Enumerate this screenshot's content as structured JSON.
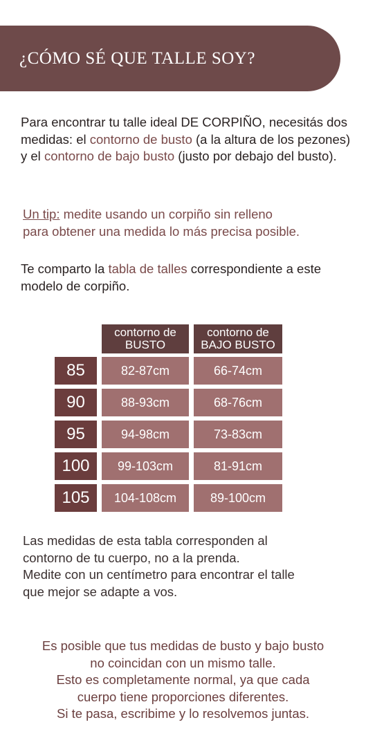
{
  "header": {
    "title": "¿CÓMO SÉ QUE TALLE SOY?"
  },
  "intro": [
    "Para encontrar tu talle ideal DE CORPIÑO, necesitás dos medidas: el ",
    "contorno de busto",
    " (a la altura de los pezones) y el ",
    "contorno de bajo busto",
    " (justo por debajo del busto)."
  ],
  "tip": {
    "label": "Un tip:",
    "lines": [
      " medite usando un corpiño sin relleno",
      "para obtener una medida lo más precisa posible."
    ]
  },
  "share": [
    "Te comparto la ",
    "tabla de talles",
    " correspondiente a este modelo de corpiño."
  ],
  "table": {
    "headers": [
      [
        "contorno de",
        "BUSTO"
      ],
      [
        "contorno de",
        "BAJO BUSTO"
      ]
    ],
    "rows": [
      [
        "85",
        "82-87cm",
        "66-74cm"
      ],
      [
        "90",
        "88-93cm",
        "68-76cm"
      ],
      [
        "95",
        "94-98cm",
        "73-83cm"
      ],
      [
        "100",
        "99-103cm",
        "81-91cm"
      ],
      [
        "105",
        "104-108cm",
        "89-100cm"
      ]
    ]
  },
  "notes": [
    "Las medidas de esta tabla corresponden al",
    "contorno de tu cuerpo, no a la prenda.",
    "Medite con un centímetro para encontrar el talle",
    "que mejor se adapte a vos."
  ],
  "closing": [
    "Es posible que tus medidas de busto y bajo busto",
    "no coincidan con un mismo talle.",
    "Esto es completamente normal, ya que cada",
    "cuerpo tiene proporciones diferentes.",
    "Si te pasa, escribime y lo resolvemos juntas."
  ]
}
